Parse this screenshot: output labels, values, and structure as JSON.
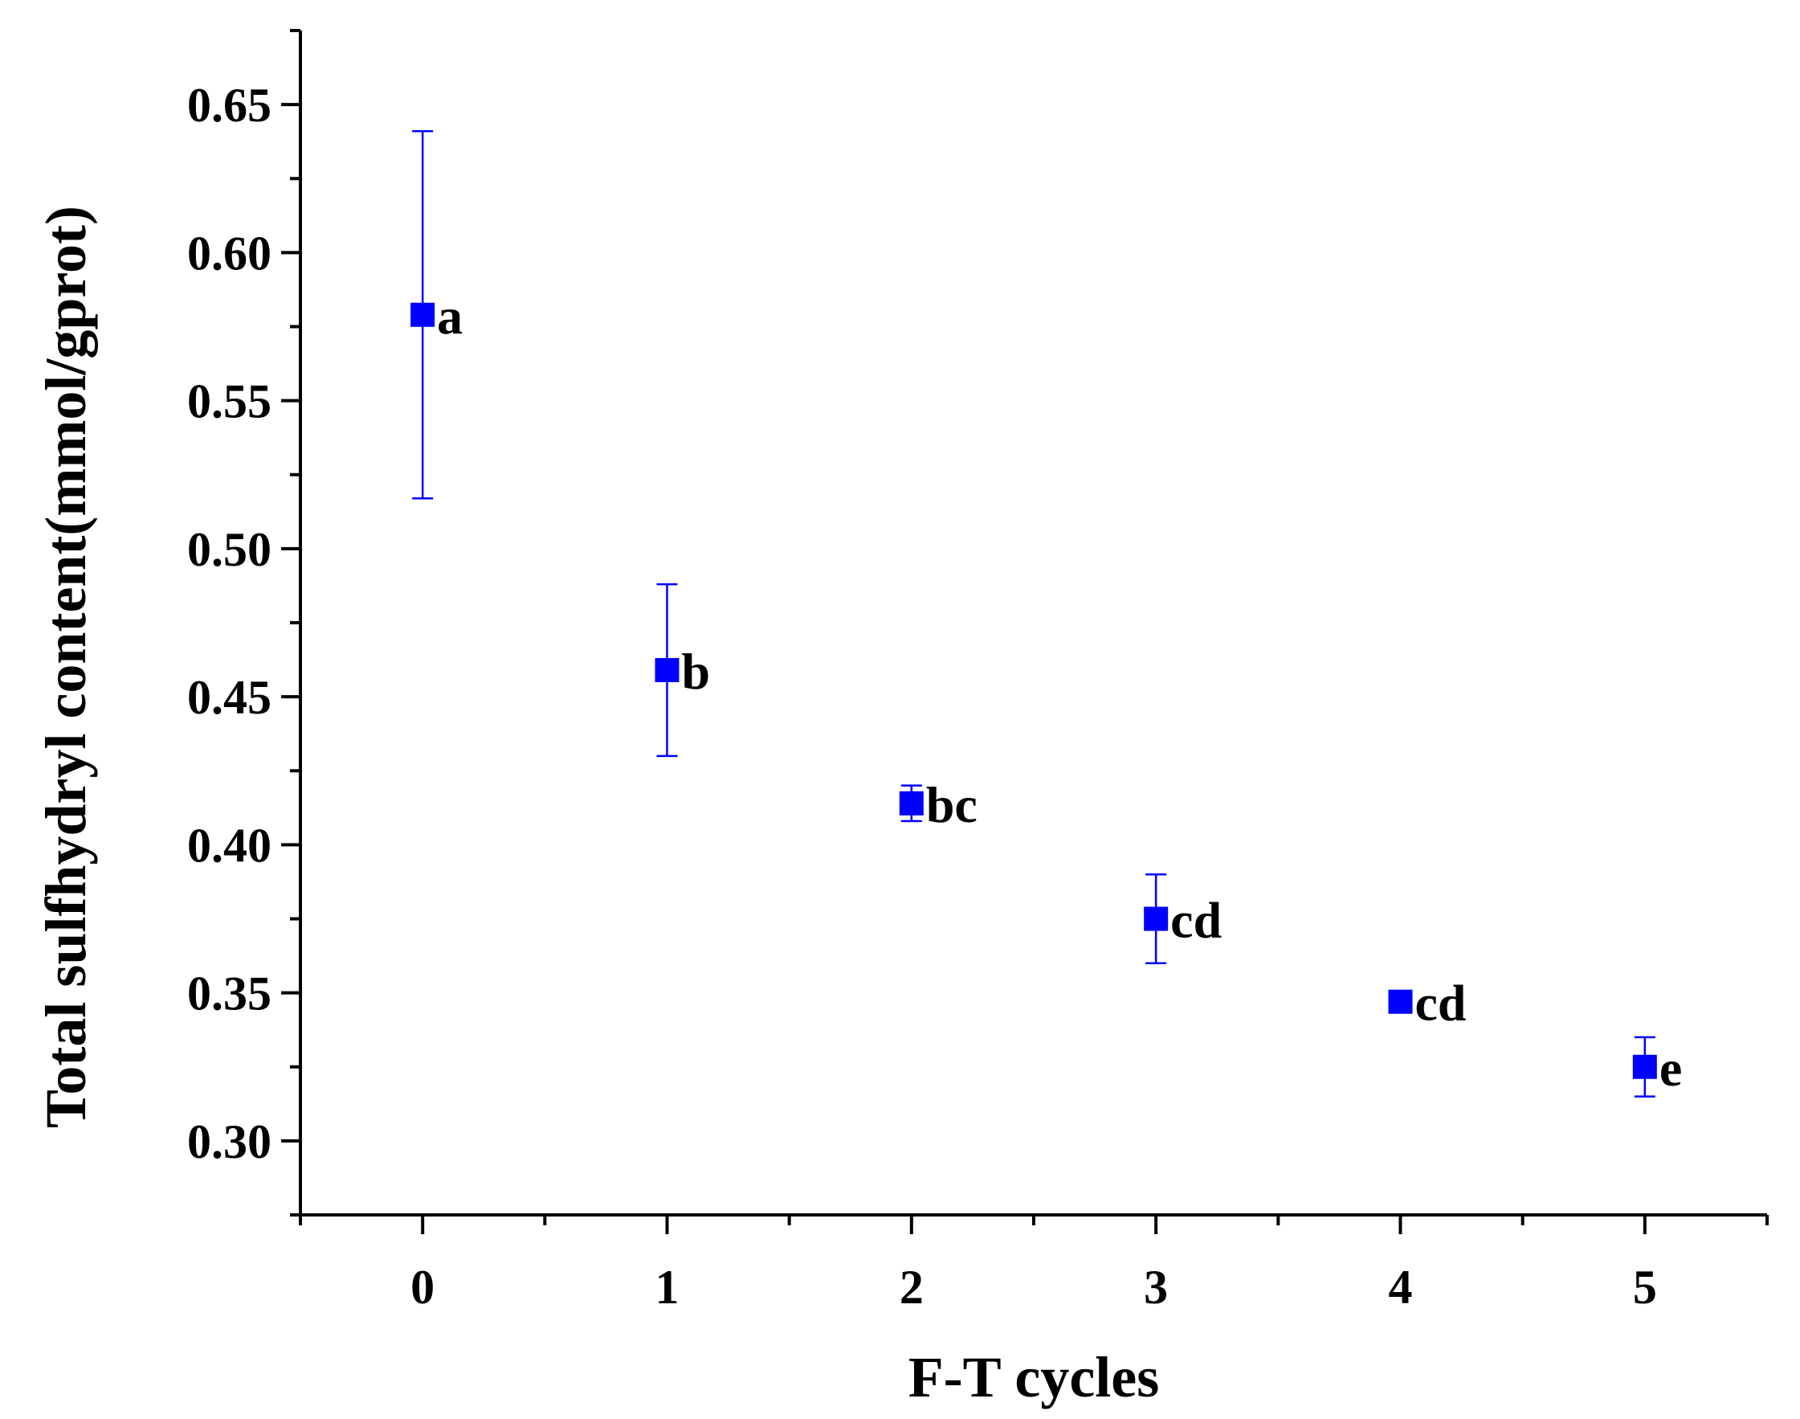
{
  "chart_data": {
    "type": "scatter",
    "title": "",
    "xlabel": "F-T cycles",
    "ylabel": "Total sulfhydryl content(mmol/gprot)",
    "xlim": [
      -0.5,
      5.5
    ],
    "ylim": [
      0.275,
      0.675
    ],
    "x_ticks": [
      "0",
      "1",
      "2",
      "3",
      "4",
      "5"
    ],
    "y_ticks": [
      "0.30",
      "0.35",
      "0.40",
      "0.45",
      "0.50",
      "0.55",
      "0.60",
      "0.65"
    ],
    "marker_color": "#0000FF",
    "series": [
      {
        "name": "Total sulfhydryl content",
        "marker": "square",
        "points": [
          {
            "x": 0,
            "y": 0.579,
            "err": 0.062,
            "label": "a"
          },
          {
            "x": 1,
            "y": 0.459,
            "err": 0.029,
            "label": "b"
          },
          {
            "x": 2,
            "y": 0.414,
            "err": 0.006,
            "label": "bc"
          },
          {
            "x": 3,
            "y": 0.375,
            "err": 0.015,
            "label": "cd"
          },
          {
            "x": 4,
            "y": 0.347,
            "err": 0.0,
            "label": "cd"
          },
          {
            "x": 5,
            "y": 0.325,
            "err": 0.01,
            "label": "e"
          }
        ]
      }
    ],
    "grid": false,
    "legend": "none"
  }
}
